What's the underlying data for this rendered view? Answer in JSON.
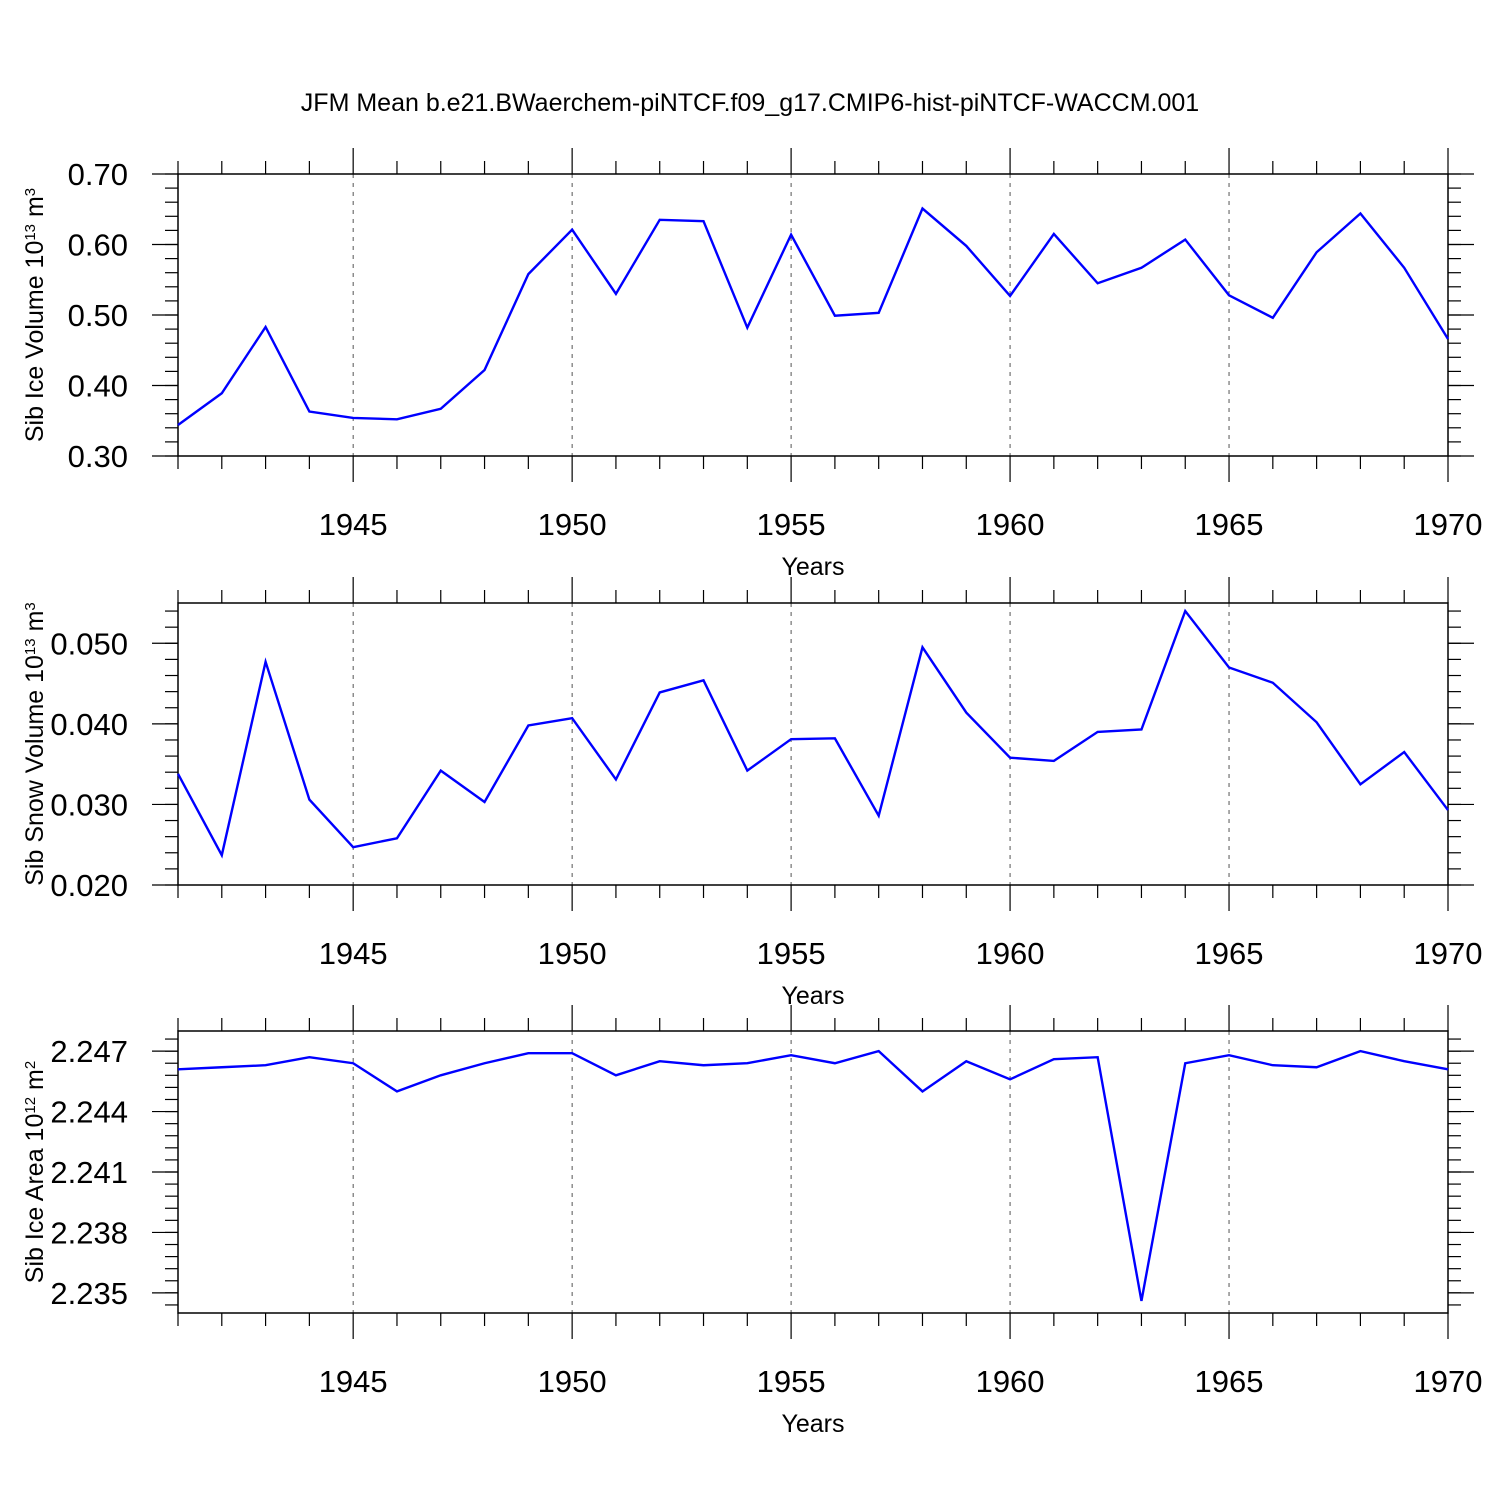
{
  "title": "JFM Mean b.e21.BWaerchem-piNTCF.f09_g17.CMIP6-hist-piNTCF-WACCM.001",
  "line_color": "#0000ff",
  "chart_data": [
    {
      "type": "line",
      "xlabel": "Years",
      "ylabel": {
        "main": "Sib Ice Volume 10",
        "sup": "13",
        "unit": " m",
        "unit_sup": "3"
      },
      "xlim": [
        1941,
        1970
      ],
      "ylim": [
        0.3,
        0.7
      ],
      "xticks": [
        1945,
        1950,
        1955,
        1960,
        1965,
        1970
      ],
      "xtick_labels": [
        "1945",
        "1950",
        "1955",
        "1960",
        "1965",
        "1970"
      ],
      "yticks": [
        0.3,
        0.4,
        0.5,
        0.6,
        0.7
      ],
      "ytick_labels": [
        "0.30",
        "0.40",
        "0.50",
        "0.60",
        "0.70"
      ],
      "grid": "vertical-dashed-at-major-x",
      "x": [
        1941,
        1942,
        1943,
        1944,
        1945,
        1946,
        1947,
        1948,
        1949,
        1950,
        1951,
        1952,
        1953,
        1954,
        1955,
        1956,
        1957,
        1958,
        1959,
        1960,
        1961,
        1962,
        1963,
        1964,
        1965,
        1966,
        1967,
        1968,
        1969,
        1970
      ],
      "series": [
        {
          "values": [
            0.344,
            0.389,
            0.483,
            0.363,
            0.354,
            0.352,
            0.367,
            0.422,
            0.558,
            0.621,
            0.53,
            0.635,
            0.633,
            0.482,
            0.614,
            0.499,
            0.503,
            0.651,
            0.598,
            0.527,
            0.615,
            0.545,
            0.567,
            0.607,
            0.528,
            0.496,
            0.589,
            0.644,
            0.567,
            0.466
          ]
        }
      ]
    },
    {
      "type": "line",
      "xlabel": "Years",
      "ylabel": {
        "main": "Sib Snow Volume 10",
        "sup": "13",
        "unit": " m",
        "unit_sup": "3"
      },
      "xlim": [
        1941,
        1970
      ],
      "ylim": [
        0.02,
        0.055
      ],
      "xticks": [
        1945,
        1950,
        1955,
        1960,
        1965,
        1970
      ],
      "xtick_labels": [
        "1945",
        "1950",
        "1955",
        "1960",
        "1965",
        "1970"
      ],
      "yticks": [
        0.02,
        0.03,
        0.04,
        0.05
      ],
      "ytick_labels": [
        "0.020",
        "0.030",
        "0.040",
        "0.050"
      ],
      "grid": "vertical-dashed-at-major-x",
      "x": [
        1941,
        1942,
        1943,
        1944,
        1945,
        1946,
        1947,
        1948,
        1949,
        1950,
        1951,
        1952,
        1953,
        1954,
        1955,
        1956,
        1957,
        1958,
        1959,
        1960,
        1961,
        1962,
        1963,
        1964,
        1965,
        1966,
        1967,
        1968,
        1969,
        1970
      ],
      "series": [
        {
          "values": [
            0.0338,
            0.0237,
            0.0477,
            0.0306,
            0.0247,
            0.0258,
            0.0342,
            0.0303,
            0.0398,
            0.0407,
            0.0331,
            0.0439,
            0.0454,
            0.0342,
            0.0381,
            0.0382,
            0.0286,
            0.0495,
            0.0414,
            0.0358,
            0.0354,
            0.039,
            0.0393,
            0.054,
            0.047,
            0.0451,
            0.0402,
            0.0325,
            0.0365,
            0.0293
          ]
        }
      ]
    },
    {
      "type": "line",
      "xlabel": "Years",
      "ylabel": {
        "main": "Sib Ice Area 10",
        "sup": "12",
        "unit": " m",
        "unit_sup": "2"
      },
      "xlim": [
        1941,
        1970
      ],
      "ylim": [
        2.234,
        2.248
      ],
      "xticks": [
        1945,
        1950,
        1955,
        1960,
        1965,
        1970
      ],
      "xtick_labels": [
        "1945",
        "1950",
        "1955",
        "1960",
        "1965",
        "1970"
      ],
      "yticks": [
        2.235,
        2.238,
        2.241,
        2.244,
        2.247
      ],
      "ytick_labels": [
        "2.235",
        "2.238",
        "2.241",
        "2.244",
        "2.247"
      ],
      "grid": "vertical-dashed-at-major-x",
      "x": [
        1941,
        1942,
        1943,
        1944,
        1945,
        1946,
        1947,
        1948,
        1949,
        1950,
        1951,
        1952,
        1953,
        1954,
        1955,
        1956,
        1957,
        1958,
        1959,
        1960,
        1961,
        1962,
        1963,
        1964,
        1965,
        1966,
        1967,
        1968,
        1969,
        1970
      ],
      "series": [
        {
          "values": [
            2.2461,
            2.2462,
            2.2463,
            2.2467,
            2.2464,
            2.245,
            2.2458,
            2.2464,
            2.2469,
            2.2469,
            2.2458,
            2.2465,
            2.2463,
            2.2464,
            2.2468,
            2.2464,
            2.247,
            2.245,
            2.2465,
            2.2456,
            2.2466,
            2.2467,
            2.2346,
            2.2464,
            2.2468,
            2.2463,
            2.2462,
            2.247,
            2.2465,
            2.2461
          ]
        }
      ]
    }
  ]
}
